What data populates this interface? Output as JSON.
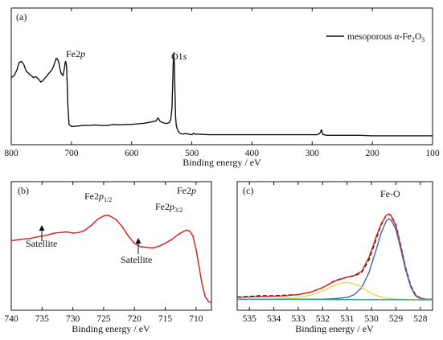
{
  "chart_data": [
    {
      "id": "a",
      "type": "line",
      "panel_label": "(a)",
      "xlabel": "Binding energy / eV",
      "ylabel": "",
      "xlim": [
        800,
        100
      ],
      "x_reversed": true,
      "ylim": [
        0,
        100
      ],
      "y_ticks_shown": false,
      "x_ticks": [
        800,
        700,
        600,
        500,
        400,
        300,
        200,
        100
      ],
      "legend": {
        "label": "mesoporous α-Fe2O3",
        "position": "top-right"
      },
      "annotations": [
        {
          "text": "Fe2p",
          "x": 711
        },
        {
          "text": "O1s",
          "x": 530
        }
      ],
      "series": [
        {
          "name": "mesoporous α-Fe2O3",
          "color": "#111111",
          "x": [
            800,
            795,
            790,
            787,
            783,
            779,
            775,
            771,
            767,
            763,
            759,
            755,
            751,
            748,
            745,
            742,
            739,
            736,
            733,
            730,
            727,
            725,
            723,
            721,
            719,
            717,
            714,
            712,
            710,
            709,
            708,
            707,
            706,
            704,
            700,
            690,
            680,
            670,
            660,
            650,
            640,
            630,
            620,
            610,
            600,
            590,
            580,
            570,
            560,
            556,
            553,
            550,
            545,
            540,
            537,
            535,
            533,
            532,
            531,
            530,
            529,
            528,
            527,
            526,
            525,
            523,
            520,
            515,
            510,
            505,
            500,
            497,
            495,
            490,
            470,
            450,
            420,
            400,
            380,
            350,
            320,
            300,
            292,
            288,
            286,
            285,
            284,
            283,
            282,
            280,
            276,
            260,
            240,
            220,
            200,
            180,
            160,
            140,
            120,
            100
          ],
          "y": [
            58,
            60,
            66,
            72,
            73,
            70,
            64,
            62,
            60,
            58,
            59,
            57,
            54,
            55,
            57,
            59,
            61,
            63,
            65,
            68,
            73,
            76,
            75,
            72,
            66,
            62,
            60,
            66,
            73,
            72,
            68,
            52,
            33,
            15,
            13,
            13.5,
            14,
            14,
            14.5,
            14,
            14,
            15,
            14.5,
            15,
            15,
            15.5,
            16,
            17,
            18,
            21,
            18,
            17,
            16,
            16,
            17,
            20,
            30,
            48,
            70,
            81,
            70,
            45,
            22,
            15,
            12,
            9,
            7,
            6,
            6.5,
            6,
            5.5,
            7,
            6,
            6,
            5.5,
            5.5,
            5.5,
            5.5,
            5.5,
            5.5,
            5.5,
            5.5,
            5.5,
            6.5,
            8,
            10,
            9,
            7,
            5.5,
            5.5,
            5,
            5,
            5,
            5,
            4.5,
            4.5,
            4.5,
            4.5,
            4.5,
            4.5
          ]
        }
      ]
    },
    {
      "id": "b",
      "type": "line",
      "panel_label": "(b)",
      "xlabel": "Binding energy / eV",
      "ylabel": "",
      "xlim": [
        740,
        707.5
      ],
      "x_reversed": true,
      "ylim": [
        0,
        100
      ],
      "y_ticks_shown": false,
      "x_ticks": [
        740,
        735,
        730,
        725,
        720,
        715,
        710
      ],
      "annotations": [
        {
          "text": "Fe2p1/2",
          "x": 724.8
        },
        {
          "text": "Fe2p3/2",
          "x": 712.5
        },
        {
          "text": "Fe2p",
          "x": 710.8
        },
        {
          "text": "Satellite",
          "x": 733,
          "arrow_to_x": 732.5
        },
        {
          "text": "Satellite",
          "x": 719,
          "arrow_to_x": 719
        }
      ],
      "series": [
        {
          "name": "",
          "color": "#dd2222",
          "x": [
            740,
            739,
            738,
            737,
            736,
            735,
            734,
            733,
            732,
            731,
            730,
            729,
            728,
            727,
            726,
            725,
            724.5,
            724,
            723,
            722,
            721,
            720,
            719,
            718,
            717,
            716,
            715,
            714,
            713,
            712,
            711.5,
            711,
            710.5,
            710,
            709.5,
            709,
            708.5,
            708,
            707.5
          ],
          "y": [
            57,
            58,
            58.5,
            59,
            60,
            61,
            62,
            63.5,
            64,
            64.5,
            63.5,
            64,
            66,
            70,
            75,
            78,
            78.5,
            78,
            75,
            69,
            61,
            55,
            52,
            51.5,
            51,
            52.5,
            55,
            58,
            62,
            65,
            66,
            65,
            61,
            50,
            35,
            20,
            10,
            6,
            5
          ]
        }
      ]
    },
    {
      "id": "c",
      "type": "line",
      "panel_label": "(c)",
      "xlabel": "Binding energy / eV",
      "ylabel": "",
      "xlim": [
        535.5,
        527.5
      ],
      "x_reversed": true,
      "ylim": [
        0,
        100
      ],
      "y_ticks_shown": false,
      "x_ticks": [
        535,
        534,
        533,
        532,
        531,
        530,
        529,
        528
      ],
      "annotations": [
        {
          "text": "Fe-O",
          "x": 529.3
        }
      ],
      "series": [
        {
          "name": "",
          "color": "#111111",
          "dashed": true,
          "x": [
            535.5,
            535,
            534.5,
            534,
            533.5,
            533,
            532.5,
            532,
            531.5,
            531,
            530.7,
            530.4,
            530.1,
            529.8,
            529.6,
            529.4,
            529.3,
            529.2,
            529.0,
            528.8,
            528.6,
            528.4,
            528.2,
            528,
            527.8,
            527.5
          ],
          "y": [
            8,
            8.5,
            9,
            9,
            9.5,
            10,
            12,
            16,
            22,
            25,
            26,
            29,
            40,
            58,
            70,
            78,
            79,
            78,
            70,
            52,
            33,
            18,
            10,
            7,
            6,
            6
          ]
        },
        {
          "name": "",
          "color": "#dd2222",
          "x": [
            535.5,
            535,
            534.5,
            534,
            533.5,
            533,
            532.5,
            532,
            531.5,
            531,
            530.7,
            530.4,
            530.1,
            529.8,
            529.6,
            529.4,
            529.3,
            529.2,
            529.0,
            528.8,
            528.6,
            528.4,
            528.2,
            528,
            527.8,
            527.5
          ],
          "y": [
            7.5,
            8,
            8.3,
            8.6,
            9,
            10,
            12,
            16,
            21.5,
            25,
            26.5,
            30,
            42,
            60,
            71,
            78,
            79,
            77.5,
            69,
            51,
            32,
            17,
            9.5,
            7,
            6,
            5.8
          ]
        },
        {
          "name": "",
          "color": "#4a5fa0",
          "x": [
            535.5,
            533,
            532,
            531.5,
            531,
            530.7,
            530.4,
            530.1,
            529.8,
            529.6,
            529.4,
            529.3,
            529.2,
            529.0,
            528.8,
            528.6,
            528.4,
            528.2,
            528,
            527.5
          ],
          "y": [
            6,
            6,
            6,
            6.5,
            7.5,
            10,
            16,
            29,
            49,
            63,
            73,
            75,
            74,
            66,
            49,
            31,
            17,
            9,
            6.5,
            5.5
          ]
        },
        {
          "name": "",
          "color": "#e6d84a",
          "x": [
            535.5,
            534,
            533,
            532.5,
            532,
            531.5,
            531.2,
            531,
            530.8,
            530.5,
            530.2,
            530,
            529.7,
            529.4,
            529,
            528.5,
            528,
            527.5
          ],
          "y": [
            6,
            6.3,
            7.5,
            9.5,
            13,
            18,
            20,
            20.5,
            19.8,
            17.5,
            13.5,
            11,
            8.5,
            7,
            6.2,
            5.8,
            5.6,
            5.5
          ]
        },
        {
          "name": "",
          "color": "#2a9a8a",
          "x": [
            535.5,
            527.5
          ],
          "y": [
            6,
            5.5
          ]
        }
      ]
    }
  ]
}
